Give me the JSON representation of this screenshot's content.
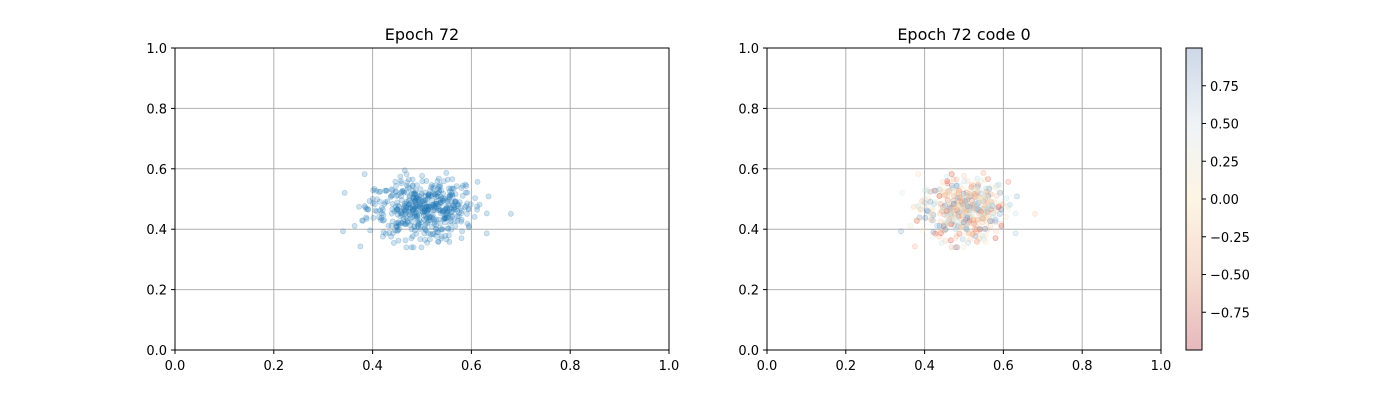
{
  "figure": {
    "background": "#ffffff",
    "grid_color": "#b0b0b0"
  },
  "chart_data": [
    {
      "type": "scatter",
      "title": "Epoch 72",
      "xlabel": "",
      "ylabel": "",
      "xlim": [
        0.0,
        1.0
      ],
      "ylim": [
        0.0,
        1.0
      ],
      "xticks": [
        "0.0",
        "0.2",
        "0.4",
        "0.6",
        "0.8",
        "1.0"
      ],
      "yticks": [
        "0.0",
        "0.2",
        "0.4",
        "0.6",
        "0.8",
        "1.0"
      ],
      "grid": true,
      "marker_color": "#1f77b4",
      "marker_alpha": 0.2,
      "points": {
        "count": 500,
        "x_mean": 0.5,
        "x_std": 0.055,
        "y_mean": 0.47,
        "y_std": 0.05,
        "x_range": [
          0.34,
          0.68
        ],
        "y_range": [
          0.34,
          0.68
        ]
      }
    },
    {
      "type": "scatter",
      "title": "Epoch 72 code 0",
      "xlabel": "",
      "ylabel": "",
      "xlim": [
        0.0,
        1.0
      ],
      "ylim": [
        0.0,
        1.0
      ],
      "xticks": [
        "0.0",
        "0.2",
        "0.4",
        "0.6",
        "0.8",
        "1.0"
      ],
      "yticks": [
        "0.0",
        "0.2",
        "0.4",
        "0.6",
        "0.8",
        "1.0"
      ],
      "grid": true,
      "marker_alpha": 0.2,
      "colormap": "RdYlBu",
      "points": "same positions as Epoch 72, colored by code 0 value in [-1, 1]",
      "colorbar": {
        "range": [
          -1.0,
          1.0
        ],
        "ticks": [
          "0.75",
          "0.50",
          "0.25",
          "0.00",
          "−0.25",
          "−0.50",
          "−0.75"
        ],
        "tick_values": [
          0.75,
          0.5,
          0.25,
          0.0,
          -0.25,
          -0.5,
          -0.75
        ],
        "colors": {
          "low": "#e6b9bd",
          "low_mid": "#f6ddd0",
          "mid": "#fdf5e4",
          "high_mid": "#eff3f7",
          "high": "#cdd7e6"
        }
      }
    }
  ]
}
